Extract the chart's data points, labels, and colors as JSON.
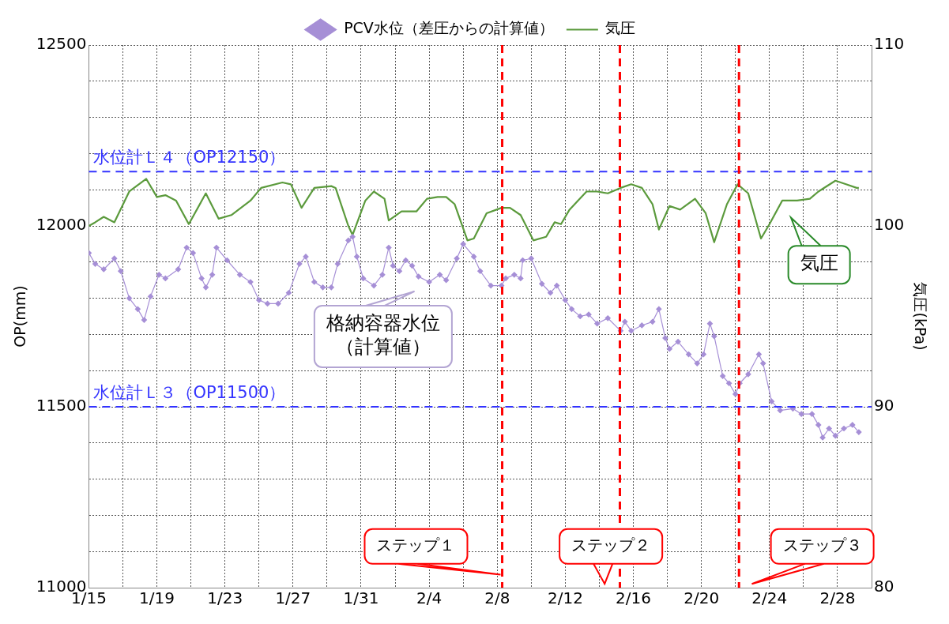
{
  "chart_data": {
    "type": "line",
    "ylabel": "OP(mm)",
    "y2label": "気圧(kPa)",
    "xlim": [
      "--01-15",
      "--03-02"
    ],
    "xticks": [
      {
        "value": "--01-15",
        "label": "1/15"
      },
      {
        "value": "--01-17",
        "label": null
      },
      {
        "value": "--01-19",
        "label": "1/19"
      },
      {
        "value": "--01-21",
        "label": null
      },
      {
        "value": "--01-23",
        "label": "1/23"
      },
      {
        "value": "--01-25",
        "label": null
      },
      {
        "value": "--01-27",
        "label": "1/27"
      },
      {
        "value": "--01-29",
        "label": null
      },
      {
        "value": "--01-31",
        "label": "1/31"
      },
      {
        "value": "--02-02",
        "label": null
      },
      {
        "value": "--02-04",
        "label": "2/4"
      },
      {
        "value": "--02-06",
        "label": null
      },
      {
        "value": "--02-08",
        "label": "2/8"
      },
      {
        "value": "--02-10",
        "label": null
      },
      {
        "value": "--02-12",
        "label": "2/12"
      },
      {
        "value": "--02-14",
        "label": null
      },
      {
        "value": "--02-16",
        "label": "2/16"
      },
      {
        "value": "--02-18",
        "label": null
      },
      {
        "value": "--02-20",
        "label": "2/20"
      },
      {
        "value": "--02-22",
        "label": null
      },
      {
        "value": "--02-24",
        "label": "2/24"
      },
      {
        "value": "--02-26",
        "label": null
      },
      {
        "value": "--02-28",
        "label": "2/28"
      },
      {
        "value": "--03-02",
        "label": null
      }
    ],
    "ylim": [
      11000,
      12500
    ],
    "yticks": [
      11000,
      {
        "value": 11100,
        "label": null
      },
      {
        "value": 11200,
        "label": null
      },
      {
        "value": 11300,
        "label": null
      },
      {
        "value": 11400,
        "label": null
      },
      11500,
      {
        "value": 11600,
        "label": null
      },
      {
        "value": 11700,
        "label": null
      },
      {
        "value": 11800,
        "label": null
      },
      {
        "value": 11900,
        "label": null
      },
      12000,
      {
        "value": 12100,
        "label": null
      },
      {
        "value": 12200,
        "label": null
      },
      {
        "value": 12300,
        "label": null
      },
      {
        "value": 12400,
        "label": null
      },
      12500
    ],
    "y2lim": [
      80,
      110
    ],
    "y2ticks": [
      80,
      90,
      100,
      110
    ],
    "grid": true,
    "legend": "top",
    "series": [
      {
        "name": "PCV水位（差圧からの計算値）",
        "color": "#a68fd6",
        "marker": "diamond",
        "x": [
          "--01-15T00:00",
          "--01-15T09:00",
          "--01-15T21:00",
          "--01-16T12:00",
          "--01-16T21:00",
          "--01-17T09:00",
          "--01-17T21:00",
          "--01-18T06:00",
          "--01-18T15:00",
          "--01-19T03:00",
          "--01-19T12:00",
          "--01-20T06:00",
          "--01-20T18:00",
          "--01-21T03:00",
          "--01-21T15:00",
          "--01-21T21:00",
          "--01-22T06:00",
          "--01-22T12:00",
          "--01-23T03:00",
          "--01-23T21:00",
          "--01-24T12:00",
          "--01-25T00:00",
          "--01-25T12:00",
          "--01-26T03:00",
          "--01-26T18:00",
          "--01-27T09:00",
          "--01-27T18:00",
          "--01-28T06:00",
          "--01-28T18:00",
          "--01-29T06:00",
          "--01-29T15:00",
          "--01-30T06:00",
          "--01-30T12:00",
          "--01-30T18:00",
          "--01-31T03:00",
          "--01-31T18:00",
          "--02-01T06:00",
          "--02-01T15:00",
          "--02-01T21:00",
          "--02-02T06:00",
          "--02-02T15:00",
          "--02-03T00:00",
          "--02-03T09:00",
          "--02-04T00:00",
          "--02-04T15:00",
          "--02-05T00:00",
          "--02-05T15:00",
          "--02-06T00:00",
          "--02-06T15:00",
          "--02-07T00:00",
          "--02-07T15:00",
          "--02-08T06:00",
          "--02-08T12:00",
          "--02-09T00:00",
          "--02-09T09:00",
          "--02-09T12:00",
          "--02-10T00:00",
          "--02-10T15:00",
          "--02-11T03:00",
          "--02-11T12:00",
          "--02-12T00:00",
          "--02-12T09:00",
          "--02-12T21:00",
          "--02-13T09:00",
          "--02-13T21:00",
          "--02-14T12:00",
          "--02-15T06:00",
          "--02-15T12:00",
          "--02-15T21:00",
          "--02-16T12:00",
          "--02-17T03:00",
          "--02-17T12:00",
          "--02-17T21:00",
          "--02-18T03:00",
          "--02-18T15:00",
          "--02-19T06:00",
          "--02-19T18:00",
          "--02-20T03:00",
          "--02-20T12:00",
          "--02-20T18:00",
          "--02-21T06:00",
          "--02-21T15:00",
          "--02-22T00:00",
          "--02-22T06:00",
          "--02-22T18:00",
          "--02-23T09:00",
          "--02-23T15:00",
          "--02-24T03:00",
          "--02-24T15:00",
          "--02-25T09:00",
          "--02-25T21:00",
          "--02-26T12:00",
          "--02-26T21:00",
          "--02-27T03:00",
          "--02-27T12:00",
          "--02-27T21:00",
          "--02-28T09:00",
          "--02-28T21:00",
          "--03-01T06:00"
        ],
        "values": [
          11925,
          11895,
          11880,
          11910,
          11875,
          11800,
          11770,
          11740,
          11805,
          11865,
          11855,
          11880,
          11940,
          11925,
          11855,
          11830,
          11865,
          11940,
          11905,
          11865,
          11845,
          11795,
          11785,
          11785,
          11815,
          11895,
          11915,
          11845,
          11830,
          11830,
          11895,
          11960,
          11970,
          11915,
          11855,
          11835,
          11865,
          11940,
          11890,
          11875,
          11905,
          11890,
          11860,
          11845,
          11865,
          11850,
          11910,
          11950,
          11915,
          11875,
          11835,
          11835,
          11855,
          11865,
          11855,
          11905,
          11910,
          11840,
          11815,
          11835,
          11795,
          11770,
          11750,
          11755,
          11730,
          11745,
          11710,
          11735,
          11710,
          11725,
          11735,
          11770,
          11690,
          11660,
          11680,
          11645,
          11620,
          11645,
          11730,
          11695,
          11585,
          11565,
          11535,
          11565,
          11590,
          11645,
          11620,
          11515,
          11490,
          11495,
          11480,
          11480,
          11450,
          11415,
          11440,
          11420,
          11440,
          11450,
          11430
        ]
      },
      {
        "name": "気圧",
        "color": "#5b9a3c",
        "marker": "none",
        "axis": "y2",
        "x": [
          "--01-15T00:00",
          "--01-15T09:00",
          "--01-15T21:00",
          "--01-16T12:00",
          "--01-17T09:00",
          "--01-18T09:00",
          "--01-19T00:00",
          "--01-19T12:00",
          "--01-20T03:00",
          "--01-20T21:00",
          "--01-21T21:00",
          "--01-22T15:00",
          "--01-23T09:00",
          "--01-24T12:00",
          "--01-25T03:00",
          "--01-26T09:00",
          "--01-26T21:00",
          "--01-27T12:00",
          "--01-28T06:00",
          "--01-29T06:00",
          "--01-29T12:00",
          "--01-30T06:00",
          "--01-30T12:00",
          "--01-31T06:00",
          "--01-31T18:00",
          "--02-01T09:00",
          "--02-01T15:00",
          "--02-02T09:00",
          "--02-03T06:00",
          "--02-03T21:00",
          "--02-04T12:00",
          "--02-05T00:00",
          "--02-05T12:00",
          "--02-06T06:00",
          "--02-06T15:00",
          "--02-07T09:00",
          "--02-08T06:00",
          "--02-08T18:00",
          "--02-09T09:00",
          "--02-10T03:00",
          "--02-10T21:00",
          "--02-11T09:00",
          "--02-11T18:00",
          "--02-12T06:00",
          "--02-13T06:00",
          "--02-13T21:00",
          "--02-14T12:00",
          "--02-15T06:00",
          "--02-15T21:00",
          "--02-16T12:00",
          "--02-17T03:00",
          "--02-17T12:00",
          "--02-18T03:00",
          "--02-18T18:00",
          "--02-19T15:00",
          "--02-20T06:00",
          "--02-20T18:00",
          "--02-21T12:00",
          "--02-22T03:00",
          "--02-22T18:00",
          "--02-23T12:00",
          "--02-24T00:00",
          "--02-24T18:00",
          "--02-25T15:00",
          "--02-26T09:00",
          "--02-26T21:00",
          "--02-27T21:00",
          "--02-28T12:00",
          "--03-01T03:00",
          "--03-01T06:00"
        ],
        "values": [
          100.0,
          100.2,
          100.5,
          100.2,
          101.9,
          102.6,
          101.6,
          101.7,
          101.4,
          100.1,
          101.8,
          100.4,
          100.6,
          101.4,
          102.1,
          102.4,
          102.3,
          101.0,
          102.1,
          102.2,
          102.1,
          100.0,
          99.5,
          101.4,
          101.9,
          101.5,
          100.3,
          100.8,
          100.8,
          101.5,
          101.6,
          101.6,
          101.2,
          99.2,
          99.3,
          100.7,
          101.0,
          101.0,
          100.6,
          99.2,
          99.4,
          100.2,
          100.1,
          100.9,
          101.9,
          101.9,
          101.8,
          102.1,
          102.3,
          102.1,
          101.2,
          99.8,
          101.1,
          100.9,
          101.5,
          100.7,
          99.1,
          101.2,
          102.3,
          101.8,
          99.3,
          100.1,
          101.4,
          101.4,
          101.5,
          101.9,
          102.5,
          102.3,
          102.1,
          102.1
        ]
      }
    ],
    "ref_lines": [
      {
        "axis": "y",
        "value": 12150,
        "label": "水位計Ｌ４（OP12150）",
        "color": "#3333ff",
        "line_style": "dashed"
      },
      {
        "axis": "y",
        "value": 11500,
        "label": "水位計Ｌ３（OP11500）",
        "color": "#3333ff",
        "line_style": "dashed"
      },
      {
        "axis": "x",
        "value": "--02-08T07:00",
        "color": "#ff0000",
        "line_style": "dashed"
      },
      {
        "axis": "x",
        "value": "--02-15T05:00",
        "color": "#ff0000",
        "line_style": "dashed"
      },
      {
        "axis": "x",
        "value": "--02-22T05:00",
        "color": "#ff0000",
        "line_style": "dashed"
      }
    ],
    "annotations": [
      "格納容器水位（計算値）",
      "気圧",
      "ステップ１",
      "ステップ２",
      "ステップ３"
    ]
  }
}
